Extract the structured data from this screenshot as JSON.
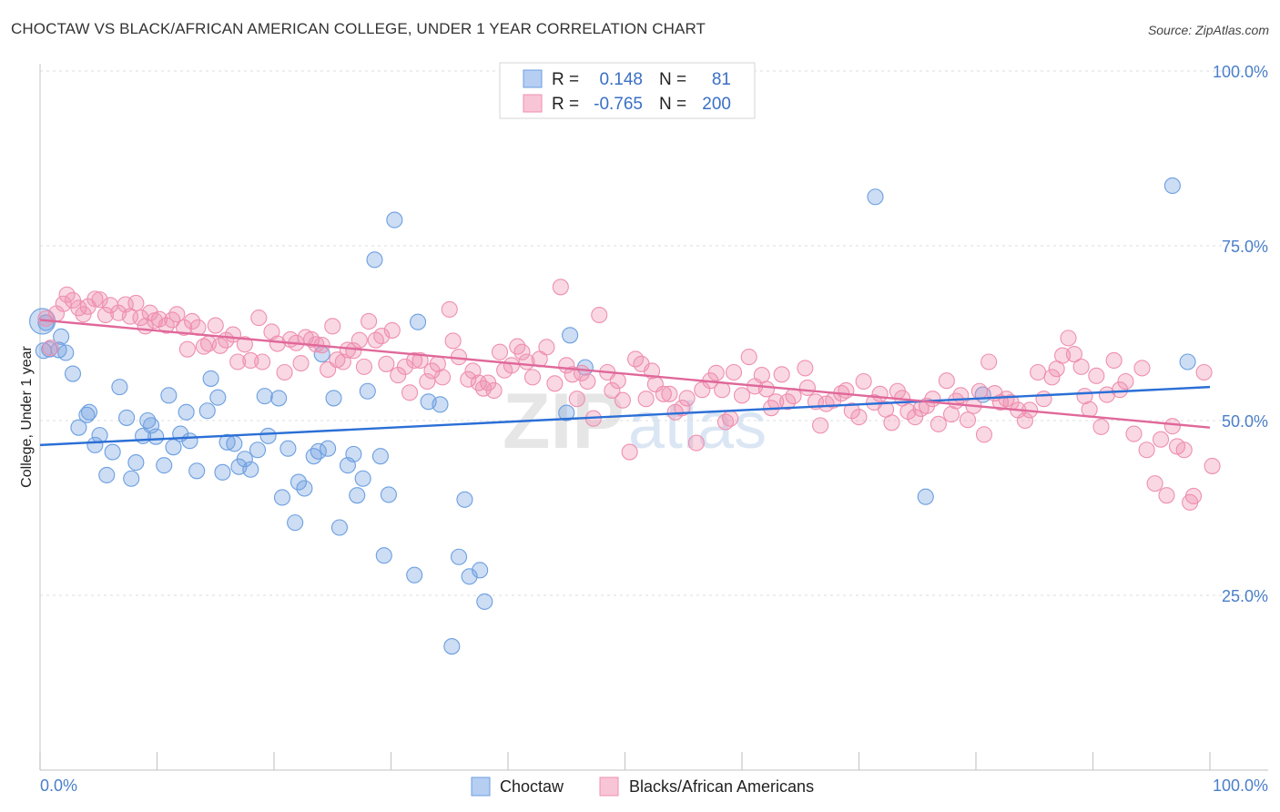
{
  "title": "CHOCTAW VS BLACK/AFRICAN AMERICAN COLLEGE, UNDER 1 YEAR CORRELATION CHART",
  "source": "Source: ZipAtlas.com",
  "colors": {
    "choctaw": "#6c9fe0",
    "black": "#ef8fb0",
    "choctaw_line": "#2b6fd6",
    "black_line": "#e0689a"
  },
  "legend": {
    "r_label": "R =",
    "n_label": "N =",
    "rows": [
      {
        "r": "0.148",
        "n": "81"
      },
      {
        "r": "-0.765",
        "n": "200"
      }
    ]
  },
  "bottom_legend": [
    "Choctaw",
    "Blacks/African Americans"
  ],
  "watermark": {
    "zip": "ZIP",
    "atlas": "atlas"
  },
  "chart_data": {
    "type": "scatter",
    "xlabel": "",
    "ylabel": "College, Under 1 year",
    "xlim": [
      0,
      100
    ],
    "ylim": [
      0,
      100
    ],
    "x_tick_labels": [
      "0.0%",
      "100.0%"
    ],
    "y_tick_labels": [
      "100.0%",
      "75.0%",
      "50.0%",
      "25.0%"
    ],
    "y_tick_values": [
      100,
      75,
      50,
      25
    ],
    "series": [
      {
        "name": "Choctaw",
        "trend": [
          [
            0,
            46.5
          ],
          [
            100,
            54.8
          ]
        ],
        "points": [
          [
            0.5,
            64
          ],
          [
            0.8,
            60.2
          ],
          [
            1.6,
            60.1
          ],
          [
            1.8,
            62
          ],
          [
            2.2,
            59.7
          ],
          [
            2.8,
            56.7
          ],
          [
            3.3,
            49
          ],
          [
            4,
            50.8
          ],
          [
            4.2,
            51.2
          ],
          [
            4.7,
            46.5
          ],
          [
            5.1,
            47.9
          ],
          [
            5.7,
            42.2
          ],
          [
            6.2,
            45.5
          ],
          [
            6.8,
            54.8
          ],
          [
            7.4,
            50.4
          ],
          [
            7.8,
            41.7
          ],
          [
            8.2,
            44
          ],
          [
            8.8,
            47.8
          ],
          [
            9.2,
            50
          ],
          [
            9.5,
            49.3
          ],
          [
            9.9,
            47.7
          ],
          [
            10.6,
            43.6
          ],
          [
            11,
            53.6
          ],
          [
            11.4,
            46.2
          ],
          [
            12,
            48.1
          ],
          [
            12.5,
            51.2
          ],
          [
            12.8,
            47.1
          ],
          [
            13.4,
            42.8
          ],
          [
            14.3,
            51.4
          ],
          [
            14.6,
            56
          ],
          [
            15.2,
            53.3
          ],
          [
            15.6,
            42.6
          ],
          [
            16,
            46.9
          ],
          [
            16.6,
            46.7
          ],
          [
            17,
            43.4
          ],
          [
            17.5,
            44.5
          ],
          [
            18,
            43
          ],
          [
            18.6,
            45.8
          ],
          [
            19.2,
            53.5
          ],
          [
            19.5,
            47.8
          ],
          [
            20.4,
            53.2
          ],
          [
            20.7,
            39
          ],
          [
            21.2,
            46
          ],
          [
            21.8,
            35.4
          ],
          [
            22.1,
            41.2
          ],
          [
            22.6,
            40.3
          ],
          [
            23.4,
            44.9
          ],
          [
            23.8,
            45.6
          ],
          [
            24.1,
            59.5
          ],
          [
            24.6,
            46.0
          ],
          [
            25.1,
            53.2
          ],
          [
            25.6,
            34.7
          ],
          [
            26.3,
            43.6
          ],
          [
            26.8,
            45.2
          ],
          [
            27.1,
            39.3
          ],
          [
            27.6,
            41.7
          ],
          [
            28,
            54.2
          ],
          [
            28.6,
            73
          ],
          [
            29.1,
            44.9
          ],
          [
            29.4,
            30.7
          ],
          [
            29.8,
            39.4
          ],
          [
            30.3,
            78.7
          ],
          [
            32,
            27.9
          ],
          [
            32.3,
            64.1
          ],
          [
            33.2,
            52.7
          ],
          [
            34.2,
            52.3
          ],
          [
            35.8,
            30.5
          ],
          [
            36.3,
            38.7
          ],
          [
            36.7,
            27.7
          ],
          [
            37.6,
            28.6
          ],
          [
            38,
            24.1
          ],
          [
            35.2,
            17.7
          ],
          [
            45,
            51.1
          ],
          [
            45.3,
            62.2
          ],
          [
            46.6,
            57.6
          ],
          [
            71.4,
            82
          ],
          [
            75.7,
            39.1
          ],
          [
            80.6,
            53.7
          ],
          [
            96.8,
            83.6
          ],
          [
            98.1,
            58.4
          ],
          [
            0.3,
            60.0
          ]
        ]
      },
      {
        "name": "Blacks/African Americans",
        "trend": [
          [
            0,
            64.4
          ],
          [
            100,
            49
          ]
        ],
        "points": [
          [
            0.5,
            64.6
          ],
          [
            0.9,
            60.4
          ],
          [
            1.4,
            65.3
          ],
          [
            2.0,
            66.7
          ],
          [
            2.3,
            68
          ],
          [
            2.8,
            67.2
          ],
          [
            3.3,
            66.1
          ],
          [
            3.7,
            65.2
          ],
          [
            4.1,
            66.3
          ],
          [
            4.7,
            67.4
          ],
          [
            5.1,
            67.3
          ],
          [
            5.6,
            65.1
          ],
          [
            6.0,
            66.5
          ],
          [
            6.7,
            65.4
          ],
          [
            7.3,
            66.6
          ],
          [
            7.7,
            64.9
          ],
          [
            8.2,
            66.8
          ],
          [
            8.6,
            64.7
          ],
          [
            9,
            63.5
          ],
          [
            9.4,
            65.4
          ],
          [
            9.8,
            64.3
          ],
          [
            10.2,
            64.5
          ],
          [
            10.8,
            63.6
          ],
          [
            11.3,
            64.4
          ],
          [
            11.7,
            65.2
          ],
          [
            12.3,
            63.3
          ],
          [
            12.6,
            60.2
          ],
          [
            13.0,
            64.2
          ],
          [
            13.5,
            63.3
          ],
          [
            14.0,
            60.6
          ],
          [
            14.4,
            61
          ],
          [
            15.0,
            63.6
          ],
          [
            15.4,
            60.7
          ],
          [
            15.9,
            61.5
          ],
          [
            16.5,
            62.3
          ],
          [
            16.9,
            58.4
          ],
          [
            17.5,
            60.9
          ],
          [
            18.0,
            58.6
          ],
          [
            18.7,
            64.7
          ],
          [
            19.0,
            58.4
          ],
          [
            19.8,
            62.7
          ],
          [
            20.3,
            61
          ],
          [
            20.9,
            56.9
          ],
          [
            21.4,
            61.6
          ],
          [
            21.9,
            61.1
          ],
          [
            22.3,
            58.2
          ],
          [
            22.7,
            61.9
          ],
          [
            23.2,
            61.6
          ],
          [
            23.6,
            60.9
          ],
          [
            24.1,
            60.8
          ],
          [
            24.6,
            57.3
          ],
          [
            25.0,
            63.5
          ],
          [
            25.4,
            58.7
          ],
          [
            25.9,
            58.4
          ],
          [
            26.3,
            60.1
          ],
          [
            26.8,
            60
          ],
          [
            27.3,
            61.5
          ],
          [
            27.7,
            57.7
          ],
          [
            28.1,
            64.2
          ],
          [
            28.7,
            61.5
          ],
          [
            29.2,
            62.1
          ],
          [
            29.6,
            58.1
          ],
          [
            30.1,
            62.9
          ],
          [
            30.6,
            56.5
          ],
          [
            31.2,
            57.7
          ],
          [
            31.6,
            54
          ],
          [
            32.0,
            58.6
          ],
          [
            32.5,
            58.6
          ],
          [
            33.1,
            55.6
          ],
          [
            33.5,
            57.1
          ],
          [
            34.0,
            58.1
          ],
          [
            34.4,
            56.2
          ],
          [
            35.0,
            65.9
          ],
          [
            35.3,
            61.4
          ],
          [
            35.8,
            59.1
          ],
          [
            36.6,
            55.9
          ],
          [
            37.0,
            57.1
          ],
          [
            37.5,
            55.4
          ],
          [
            37.9,
            54.6
          ],
          [
            38.3,
            55.4
          ],
          [
            38.8,
            54.3
          ],
          [
            39.3,
            59.8
          ],
          [
            39.7,
            57.2
          ],
          [
            40.3,
            57.9
          ],
          [
            40.8,
            60.6
          ],
          [
            41.2,
            59.8
          ],
          [
            41.6,
            58.4
          ],
          [
            42.1,
            56.2
          ],
          [
            42.7,
            58.8
          ],
          [
            43.3,
            60.5
          ],
          [
            44.0,
            55.3
          ],
          [
            44.5,
            69.1
          ],
          [
            45.0,
            57.9
          ],
          [
            45.5,
            56.6
          ],
          [
            45.9,
            53.1
          ],
          [
            46.3,
            56.8
          ],
          [
            46.8,
            55.6
          ],
          [
            47.3,
            50.3
          ],
          [
            47.8,
            65.1
          ],
          [
            48.5,
            56.9
          ],
          [
            48.9,
            54.3
          ],
          [
            49.4,
            55.7
          ],
          [
            49.8,
            52.9
          ],
          [
            50.4,
            45.5
          ],
          [
            50.9,
            58.8
          ],
          [
            51.4,
            58.1
          ],
          [
            51.8,
            53.1
          ],
          [
            52.3,
            57.1
          ],
          [
            52.6,
            55.2
          ],
          [
            53.3,
            53.8
          ],
          [
            53.8,
            53.8
          ],
          [
            54.3,
            51.2
          ],
          [
            54.9,
            51.8
          ],
          [
            55.3,
            53.2
          ],
          [
            56.1,
            46.8
          ],
          [
            56.6,
            54.4
          ],
          [
            57.3,
            55.7
          ],
          [
            57.8,
            56.8
          ],
          [
            58.3,
            54.4
          ],
          [
            58.6,
            49.8
          ],
          [
            59.0,
            50.3
          ],
          [
            59.3,
            56.9
          ],
          [
            60.0,
            53.6
          ],
          [
            60.6,
            59.1
          ],
          [
            61.1,
            54.9
          ],
          [
            61.7,
            56.5
          ],
          [
            62.1,
            54.5
          ],
          [
            62.5,
            51.8
          ],
          [
            62.9,
            52.7
          ],
          [
            63.4,
            56.6
          ],
          [
            63.9,
            52.7
          ],
          [
            64.4,
            53.5
          ],
          [
            65.4,
            57.5
          ],
          [
            65.6,
            54.7
          ],
          [
            66.3,
            52.7
          ],
          [
            66.7,
            49.3
          ],
          [
            67.2,
            52.4
          ],
          [
            67.8,
            52.9
          ],
          [
            68.5,
            53.9
          ],
          [
            68.9,
            54.3
          ],
          [
            69.4,
            51.4
          ],
          [
            70.0,
            50.5
          ],
          [
            70.4,
            55.6
          ],
          [
            71.3,
            52.6
          ],
          [
            71.8,
            53.8
          ],
          [
            72.3,
            51.6
          ],
          [
            72.8,
            49.7
          ],
          [
            73.3,
            54.2
          ],
          [
            73.7,
            53.2
          ],
          [
            74.2,
            51.3
          ],
          [
            74.8,
            50.5
          ],
          [
            75.3,
            51.7
          ],
          [
            75.8,
            52.1
          ],
          [
            76.3,
            53.1
          ],
          [
            76.8,
            49.5
          ],
          [
            77.5,
            55.7
          ],
          [
            77.9,
            50.9
          ],
          [
            78.3,
            52.8
          ],
          [
            78.7,
            53.6
          ],
          [
            79.3,
            50.1
          ],
          [
            79.8,
            52.1
          ],
          [
            80.3,
            54.2
          ],
          [
            80.7,
            48
          ],
          [
            81.1,
            58.4
          ],
          [
            81.6,
            53.9
          ],
          [
            82.1,
            52.6
          ],
          [
            82.6,
            53.1
          ],
          [
            83.0,
            52.6
          ],
          [
            83.6,
            51.5
          ],
          [
            84.2,
            50
          ],
          [
            84.6,
            51.5
          ],
          [
            85.3,
            56.9
          ],
          [
            85.8,
            53.1
          ],
          [
            86.5,
            56.2
          ],
          [
            86.9,
            57.4
          ],
          [
            87.4,
            59.3
          ],
          [
            87.9,
            61.8
          ],
          [
            88.4,
            59.5
          ],
          [
            89.0,
            57.7
          ],
          [
            89.3,
            53.5
          ],
          [
            89.7,
            51.6
          ],
          [
            90.3,
            56.4
          ],
          [
            90.7,
            49.1
          ],
          [
            91.2,
            53.7
          ],
          [
            91.8,
            58.6
          ],
          [
            92.3,
            54.4
          ],
          [
            92.8,
            55.6
          ],
          [
            93.5,
            48.1
          ],
          [
            94.2,
            57.5
          ],
          [
            94.6,
            45.8
          ],
          [
            95.3,
            41
          ],
          [
            95.8,
            47.3
          ],
          [
            96.3,
            39.3
          ],
          [
            96.8,
            49.2
          ],
          [
            97.2,
            46.3
          ],
          [
            97.8,
            45.8
          ],
          [
            98.3,
            38.3
          ],
          [
            98.6,
            39.2
          ],
          [
            99.5,
            56.9
          ],
          [
            100.2,
            43.5
          ]
        ]
      }
    ],
    "legend_position": "top-center",
    "grid": true
  }
}
